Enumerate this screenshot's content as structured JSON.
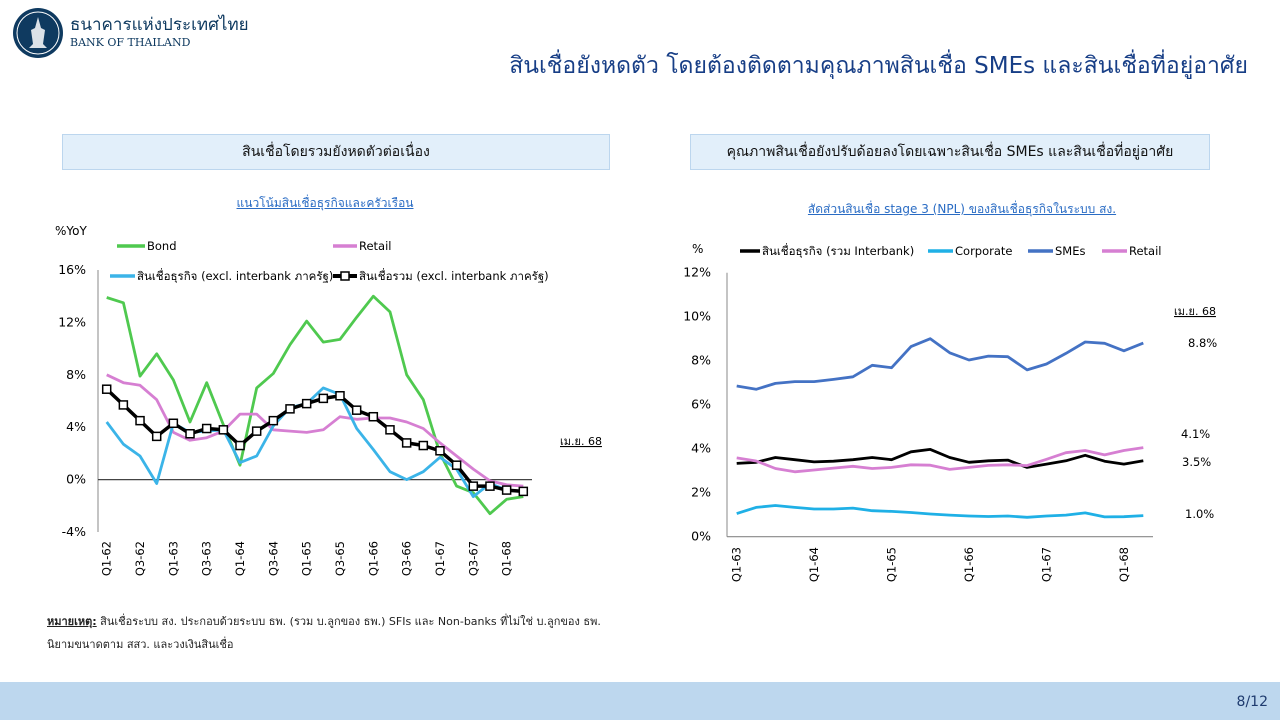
{
  "header": {
    "logo_th": "ธนาคารแห่งประเทศไทย",
    "logo_en": "BANK OF THAILAND",
    "title": "สินเชื่อยังหดตัว โดยต้องติดตามคุณภาพสินเชื่อ SMEs และสินเชื่อที่อยู่อาศัย"
  },
  "left_panel": {
    "heading": "สินเชื่อโดยรวมยังหดตัวต่อเนื่อง",
    "subtitle": "แนวโน้มสินเชื่อธุรกิจและครัวเรือน"
  },
  "right_panel": {
    "heading": "คุณภาพสินเชื่อยังปรับด้อยลงโดยเฉพาะสินเชื่อ SMEs และสินเชื่อที่อยู่อาศัย",
    "subtitle": "สัดส่วนสินเชื่อ stage 3 (NPL) ของสินเชื่อธุรกิจในระบบ สง."
  },
  "footnote": {
    "label": "หมายเหตุ:",
    "line1": " สินเชื่อระบบ สง. ประกอบด้วยระบบ ธพ. (รวม บ.ลูกของ ธพ.) SFIs และ Non-banks ที่ไม่ใช่ บ.ลูกของ ธพ.",
    "line2": "นิยามขนาดตาม สสว. และวงเงินสินเชื่อ"
  },
  "footer": {
    "page": "8/12",
    "color": "#bdd7ee"
  },
  "chart_data": [
    {
      "type": "line",
      "title": "แนวโน้มสินเชื่อธุรกิจและครัวเรือน",
      "ylabel": "%YoY",
      "ylim": [
        -4,
        16
      ],
      "yticks": [
        "16%",
        "12%",
        "8%",
        "4%",
        "0%",
        "-4%"
      ],
      "ytick_values": [
        16,
        12,
        8,
        4,
        0,
        -4
      ],
      "categories": [
        "Q1-62",
        "Q2-62",
        "Q3-62",
        "Q4-62",
        "Q1-63",
        "Q2-63",
        "Q3-63",
        "Q4-63",
        "Q1-64",
        "Q2-64",
        "Q3-64",
        "Q4-64",
        "Q1-65",
        "Q2-65",
        "Q3-65",
        "Q4-65",
        "Q1-66",
        "Q2-66",
        "Q3-66",
        "Q4-66",
        "Q1-67",
        "Q2-67",
        "Q3-67",
        "Q4-67",
        "Q1-68",
        "เม.ย. 68"
      ],
      "xtick_labels": [
        "Q1-62",
        "Q3-62",
        "Q1-63",
        "Q3-63",
        "Q1-64",
        "Q3-64",
        "Q1-65",
        "Q3-65",
        "Q1-66",
        "Q3-66",
        "Q1-67",
        "Q3-67",
        "Q1-68"
      ],
      "annotation": "เม.ย. 68",
      "legend": "top",
      "grid": false,
      "series": [
        {
          "name": "Bond",
          "color": "#4fc94f",
          "values": [
            13.9,
            13.5,
            7.9,
            9.6,
            7.6,
            4.4,
            7.4,
            4.2,
            1.1,
            7.0,
            8.1,
            10.3,
            12.1,
            10.5,
            10.7,
            12.4,
            14.0,
            12.8,
            8.0,
            6.1,
            2.0,
            -0.5,
            -1.0,
            -2.6,
            -1.5,
            -1.3
          ]
        },
        {
          "name": "Retail",
          "color": "#d67fd2",
          "values": [
            8.0,
            7.4,
            7.2,
            6.1,
            3.6,
            3.0,
            3.2,
            3.7,
            5.0,
            5.0,
            3.8,
            3.7,
            3.6,
            3.8,
            4.8,
            4.6,
            4.7,
            4.7,
            4.4,
            3.9,
            2.8,
            1.8,
            0.8,
            -0.1,
            -0.4,
            -0.5
          ]
        },
        {
          "name": "สินเชื่อธุรกิจ (excl. interbank ภาครัฐ)",
          "color": "#3bb4e8",
          "values": [
            4.4,
            2.7,
            1.8,
            -0.3,
            4.3,
            3.6,
            3.7,
            3.8,
            1.3,
            1.8,
            4.1,
            5.5,
            5.8,
            7.0,
            6.5,
            3.9,
            2.3,
            0.6,
            0.0,
            0.6,
            1.7,
            0.8,
            -1.3,
            -0.3,
            -0.8,
            -0.9
          ]
        },
        {
          "name": "สินเชื่อรวม (excl. interbank ภาครัฐ)",
          "color": "#000000",
          "marker": "square",
          "values": [
            6.9,
            5.7,
            4.5,
            3.3,
            4.3,
            3.5,
            3.9,
            3.8,
            2.6,
            3.7,
            4.5,
            5.4,
            5.8,
            6.2,
            6.4,
            5.3,
            4.8,
            3.8,
            2.8,
            2.6,
            2.2,
            1.1,
            -0.5,
            -0.5,
            -0.8,
            -0.9
          ]
        }
      ]
    },
    {
      "type": "line",
      "title": "สัดส่วนสินเชื่อ stage 3 (NPL) ของสินเชื่อธุรกิจในระบบ สง.",
      "ylabel": "%",
      "ylim": [
        0,
        12
      ],
      "yticks": [
        "12%",
        "10%",
        "8%",
        "6%",
        "4%",
        "2%",
        "0%"
      ],
      "ytick_values": [
        12,
        10,
        8,
        6,
        4,
        2,
        0
      ],
      "categories": [
        "Q1-63",
        "Q2-63",
        "Q3-63",
        "Q4-63",
        "Q1-64",
        "Q2-64",
        "Q3-64",
        "Q4-64",
        "Q1-65",
        "Q2-65",
        "Q3-65",
        "Q4-65",
        "Q1-66",
        "Q2-66",
        "Q3-66",
        "Q4-66",
        "Q1-67",
        "Q2-67",
        "Q3-67",
        "Q4-67",
        "Q1-68",
        "เม.ย. 68"
      ],
      "xtick_labels": [
        "Q1-63",
        "Q1-64",
        "Q1-65",
        "Q1-66",
        "Q1-67",
        "Q1-68"
      ],
      "annotation": "เม.ย. 68",
      "legend": "top",
      "grid": false,
      "series": [
        {
          "name": "สินเชื่อธุรกิจ (รวม Interbank)",
          "color": "#000000",
          "end_label": "3.5%",
          "values": [
            3.33,
            3.38,
            3.6,
            3.5,
            3.4,
            3.43,
            3.5,
            3.6,
            3.5,
            3.86,
            3.97,
            3.6,
            3.38,
            3.45,
            3.48,
            3.15,
            3.3,
            3.45,
            3.7,
            3.43,
            3.3,
            3.45
          ]
        },
        {
          "name": "Corporate",
          "color": "#1fb0e6",
          "end_label": "1.0%",
          "values": [
            1.05,
            1.33,
            1.42,
            1.33,
            1.26,
            1.26,
            1.3,
            1.18,
            1.15,
            1.1,
            1.03,
            0.98,
            0.94,
            0.92,
            0.94,
            0.88,
            0.94,
            0.98,
            1.08,
            0.9,
            0.91,
            0.96
          ]
        },
        {
          "name": "SMEs",
          "color": "#4472c4",
          "end_label": "8.8%",
          "values": [
            6.85,
            6.7,
            6.97,
            7.05,
            7.05,
            7.15,
            7.27,
            7.79,
            7.68,
            8.64,
            9.0,
            8.36,
            8.03,
            8.21,
            8.18,
            7.58,
            7.85,
            8.33,
            8.85,
            8.79,
            8.45,
            8.8
          ]
        },
        {
          "name": "Retail",
          "color": "#d67fd2",
          "end_label": "4.1%",
          "values": [
            3.58,
            3.44,
            3.1,
            2.95,
            3.03,
            3.12,
            3.2,
            3.1,
            3.15,
            3.27,
            3.25,
            3.06,
            3.15,
            3.24,
            3.27,
            3.23,
            3.52,
            3.82,
            3.92,
            3.72,
            3.92,
            4.05
          ]
        }
      ]
    }
  ]
}
